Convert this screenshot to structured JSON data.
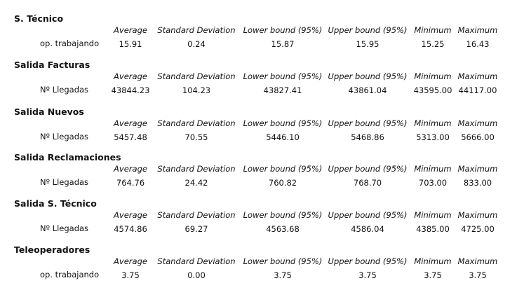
{
  "columns": [
    "Average",
    "Standard Deviation",
    "Lower bound (95%)",
    "Upper bound (95%)",
    "Minimum",
    "Maximum"
  ],
  "sections": [
    {
      "title": "S. Técnico",
      "row_label": "op. trabajando",
      "values": [
        "15.91",
        "0.24",
        "15.87",
        "15.95",
        "15.25",
        "16.43"
      ]
    },
    {
      "title": "Salida Facturas",
      "row_label": "Nº Llegadas",
      "values": [
        "43844.23",
        "104.23",
        "43827.41",
        "43861.04",
        "43595.00",
        "44117.00"
      ]
    },
    {
      "title": "Salida Nuevos",
      "row_label": "Nº Llegadas",
      "values": [
        "5457.48",
        "70.55",
        "5446.10",
        "5468.86",
        "5313.00",
        "5666.00"
      ]
    },
    {
      "title": "Salida Reclamaciones",
      "row_label": "Nº Llegadas",
      "values": [
        "764.76",
        "24.42",
        "760.82",
        "768.70",
        "703.00",
        "833.00"
      ]
    },
    {
      "title": "Salida S. Técnico",
      "row_label": "Nº Llegadas",
      "values": [
        "4574.86",
        "69.27",
        "4563.68",
        "4586.04",
        "4385.00",
        "4725.00"
      ]
    },
    {
      "title": "Teleoperadores",
      "row_label": "op. trabajando",
      "values": [
        "3.75",
        "0.00",
        "3.75",
        "3.75",
        "3.75",
        "3.75"
      ]
    }
  ]
}
